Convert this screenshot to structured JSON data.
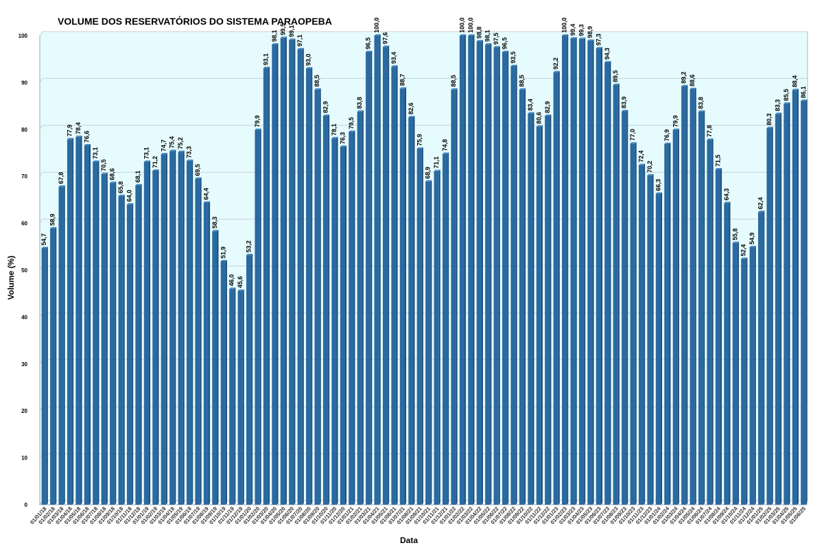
{
  "chart_data": {
    "type": "bar",
    "title": "VOLUME DOS RESERVATÓRIOS DO SISTEMA PARAOPEBA",
    "xlabel": "Data",
    "ylabel": "Volume (%)",
    "ylim": [
      0,
      100
    ],
    "yticks": [
      0,
      10,
      20,
      30,
      40,
      50,
      60,
      70,
      80,
      90,
      100
    ],
    "grid": true,
    "legend": "none",
    "colors": {
      "bar": "#2a6aa1",
      "bar_edge": "#1b4f7c",
      "plot_background": "#e6fbfd",
      "gridline": "#c8d2dc",
      "frame": "#9aa6b2"
    },
    "categories": [
      "01/01/18",
      "01/02/18",
      "01/03/18",
      "01/04/18",
      "01/05/18",
      "01/06/18",
      "01/07/18",
      "01/08/18",
      "01/09/18",
      "01/10/18",
      "01/11/18",
      "01/12/18",
      "01/01/19",
      "01/02/19",
      "01/03/19",
      "01/04/19",
      "01/05/19",
      "01/06/19",
      "01/07/19",
      "01/08/19",
      "01/09/19",
      "01/10/19",
      "01/11/19",
      "01/12/19",
      "01/01/20",
      "01/02/20",
      "01/03/20",
      "01/04/20",
      "01/05/20",
      "01/06/20",
      "01/07/20",
      "01/08/20",
      "01/09/20",
      "01/10/20",
      "01/11/20",
      "01/12/20",
      "01/01/21",
      "01/02/21",
      "01/03/21",
      "01/04/21",
      "01/05/21",
      "01/06/21",
      "01/07/21",
      "01/08/21",
      "01/09/21",
      "01/10/21",
      "01/11/21",
      "01/12/21",
      "01/01/22",
      "01/02/22",
      "01/03/22",
      "01/04/22",
      "01/05/22",
      "01/06/22",
      "01/07/22",
      "01/08/22",
      "01/09/22",
      "01/10/22",
      "01/11/22",
      "01/12/22",
      "01/01/23",
      "01/02/23",
      "01/03/23",
      "01/04/23",
      "01/05/23",
      "01/06/23",
      "01/07/23",
      "01/08/23",
      "01/09/23",
      "01/10/23",
      "01/11/23",
      "01/12/23",
      "01/01/24",
      "01/02/24",
      "01/03/24",
      "01/04/24",
      "01/05/24",
      "01/06/24",
      "01/07/24",
      "01/08/24",
      "01/09/24",
      "01/10/24",
      "01/11/24",
      "01/12/24",
      "01/01/25",
      "01/02/25",
      "01/03/25",
      "01/04/25",
      "01/05/25",
      "01/06/25"
    ],
    "values": [
      54.7,
      58.9,
      67.8,
      77.9,
      78.4,
      76.6,
      73.1,
      70.5,
      68.6,
      65.8,
      64.0,
      68.1,
      73.1,
      71.2,
      74.7,
      75.4,
      75.2,
      73.3,
      69.5,
      64.4,
      58.3,
      51.9,
      46.0,
      45.6,
      53.2,
      79.9,
      93.1,
      98.1,
      99.5,
      99.1,
      97.1,
      93.0,
      88.5,
      82.9,
      78.1,
      76.3,
      79.5,
      83.8,
      96.5,
      100.0,
      97.6,
      93.4,
      88.7,
      82.6,
      75.9,
      68.9,
      71.1,
      74.8,
      88.5,
      100.0,
      100.0,
      98.8,
      98.1,
      97.5,
      96.5,
      93.5,
      88.5,
      83.4,
      80.6,
      82.9,
      92.2,
      100.0,
      99.4,
      99.3,
      98.9,
      97.3,
      94.3,
      89.5,
      83.9,
      77.0,
      72.4,
      70.2,
      66.3,
      76.9,
      79.9,
      89.2,
      88.6,
      83.8,
      77.8,
      71.5,
      64.3,
      55.8,
      52.4,
      54.9,
      62.4,
      80.3,
      83.3,
      85.5,
      88.4,
      86.1
    ],
    "value_labels": [
      "54,7",
      "58,9",
      "67,8",
      "77,9",
      "78,4",
      "76,6",
      "73,1",
      "70,5",
      "68,6",
      "65,8",
      "64,0",
      "68,1",
      "73,1",
      "71,2",
      "74,7",
      "75,4",
      "75,2",
      "73,3",
      "69,5",
      "64,4",
      "58,3",
      "51,9",
      "46,0",
      "45,6",
      "53,2",
      "79,9",
      "93,1",
      "98,1",
      "99,5",
      "99,1",
      "97,1",
      "93,0",
      "88,5",
      "82,9",
      "78,1",
      "76,3",
      "79,5",
      "83,8",
      "96,5",
      "100,0",
      "97,6",
      "93,4",
      "88,7",
      "82,6",
      "75,9",
      "68,9",
      "71,1",
      "74,8",
      "88,5",
      "100,0",
      "100,0",
      "98,8",
      "98,1",
      "97,5",
      "96,5",
      "93,5",
      "88,5",
      "83,4",
      "80,6",
      "82,9",
      "92,2",
      "100,0",
      "99,4",
      "99,3",
      "98,9",
      "97,3",
      "94,3",
      "89,5",
      "83,9",
      "77,0",
      "72,4",
      "70,2",
      "66,3",
      "76,9",
      "79,9",
      "89,2",
      "88,6",
      "83,8",
      "77,8",
      "71,5",
      "64,3",
      "55,8",
      "52,4",
      "54,9",
      "62,4",
      "80,3",
      "83,3",
      "85,5",
      "88,4",
      "86,1"
    ]
  }
}
